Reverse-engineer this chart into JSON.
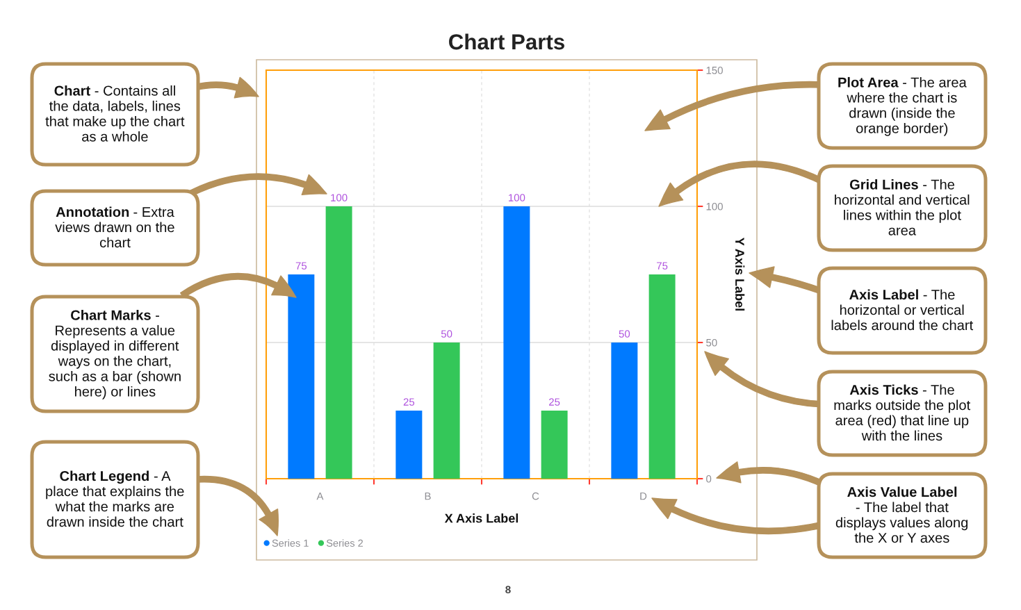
{
  "chart_data": {
    "type": "bar",
    "title": "Chart Parts",
    "xlabel": "X Axis Label",
    "ylabel": "Y Axis Label",
    "categories": [
      "A",
      "B",
      "C",
      "D"
    ],
    "series": [
      {
        "name": "Series 1",
        "color": "#007aff",
        "values": [
          75,
          25,
          100,
          50
        ]
      },
      {
        "name": "Series 2",
        "color": "#34c759",
        "values": [
          100,
          50,
          25,
          75
        ]
      }
    ],
    "ylim": [
      0,
      150
    ],
    "yticks": [
      0,
      50,
      100,
      150
    ],
    "grid": true,
    "legend": "bottom left",
    "data_labels": true,
    "annotations": [
      "Chart - Contains all\nthe data, labels, lines\nthat make up the chart\nas a whole",
      "Annotation - Extra\nviews drawn on the\nchart",
      "Chart Marks -\nRepresents a value\ndisplayed in different\nways on the chart,\nsuch as a bar (shown\nhere) or lines",
      "Chart Legend - A\nplace that explains the\nwhat the marks are\ndrawn inside the chart",
      "Plot Area - The area\nwhere the chart is\ndrawn (inside the\norange border)",
      "Grid Lines - The\nhorizontal and vertical\nlines within the plot\narea",
      "Axis Label - The\nhorizontal or vertical\nlabels around the chart",
      "Axis Ticks - The\nmarks outside the plot\narea (red) that line up\nwith the lines",
      "Axis Value Label\n- The label that\ndisplays values along\nthe X or Y axes",
      "8"
    ]
  }
}
